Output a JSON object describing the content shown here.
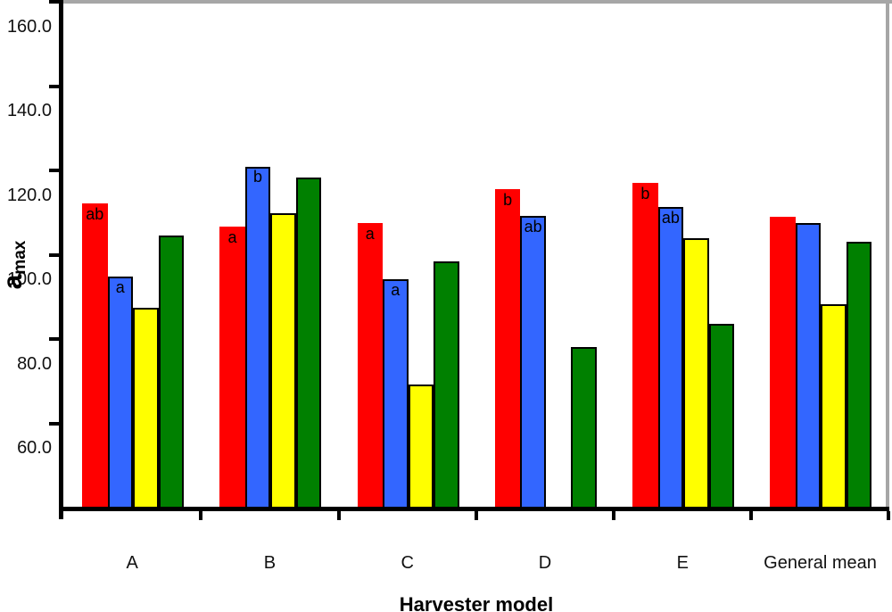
{
  "chart_data": {
    "type": "bar",
    "title": "",
    "xlabel": "Harvester model",
    "ylabel": {
      "base": "a",
      "subscript": "max"
    },
    "categories": [
      "A",
      "B",
      "C",
      "D",
      "E",
      "General mean"
    ],
    "series": [
      {
        "name": "red",
        "color": "#ff0000",
        "outlined": false,
        "values": [
          113.4,
          107.8,
          108.7,
          116.7,
          118.2,
          110.2
        ],
        "significance_letters": [
          "ab",
          "a",
          "a",
          "b",
          "b",
          ""
        ]
      },
      {
        "name": "blue",
        "color": "#3366ff",
        "outlined": true,
        "values": [
          95.9,
          122.1,
          95.4,
          110.4,
          112.4,
          108.7
        ],
        "significance_letters": [
          "a",
          "b",
          "a",
          "ab",
          "ab",
          ""
        ]
      },
      {
        "name": "yellow",
        "color": "#ffff00",
        "outlined": true,
        "values": [
          88.6,
          111.0,
          70.4,
          null,
          105.1,
          89.4
        ],
        "significance_letters": [
          "",
          "",
          "",
          "",
          "",
          ""
        ]
      },
      {
        "name": "green",
        "color": "#008000",
        "outlined": true,
        "values": [
          105.7,
          119.5,
          99.6,
          79.2,
          84.8,
          104.2
        ],
        "significance_letters": [
          "",
          "",
          "",
          "",
          "",
          ""
        ]
      }
    ],
    "yticks": [
      {
        "value": 160,
        "label": "160.0"
      },
      {
        "value": 140,
        "label": "140.0"
      },
      {
        "value": 120,
        "label": "120.0"
      },
      {
        "value": 100,
        "label": "100.0"
      },
      {
        "value": 80,
        "label": "80.0"
      },
      {
        "value": 60,
        "label": "60.0"
      }
    ],
    "ylim": [
      40.3,
      161
    ],
    "grid": false,
    "legend_position": "none"
  },
  "colors": {
    "axis": "#000000",
    "plot_border": "#a6a6a6",
    "background": "#ffffff",
    "tick_label": "#111111",
    "annotation": "#000000"
  }
}
